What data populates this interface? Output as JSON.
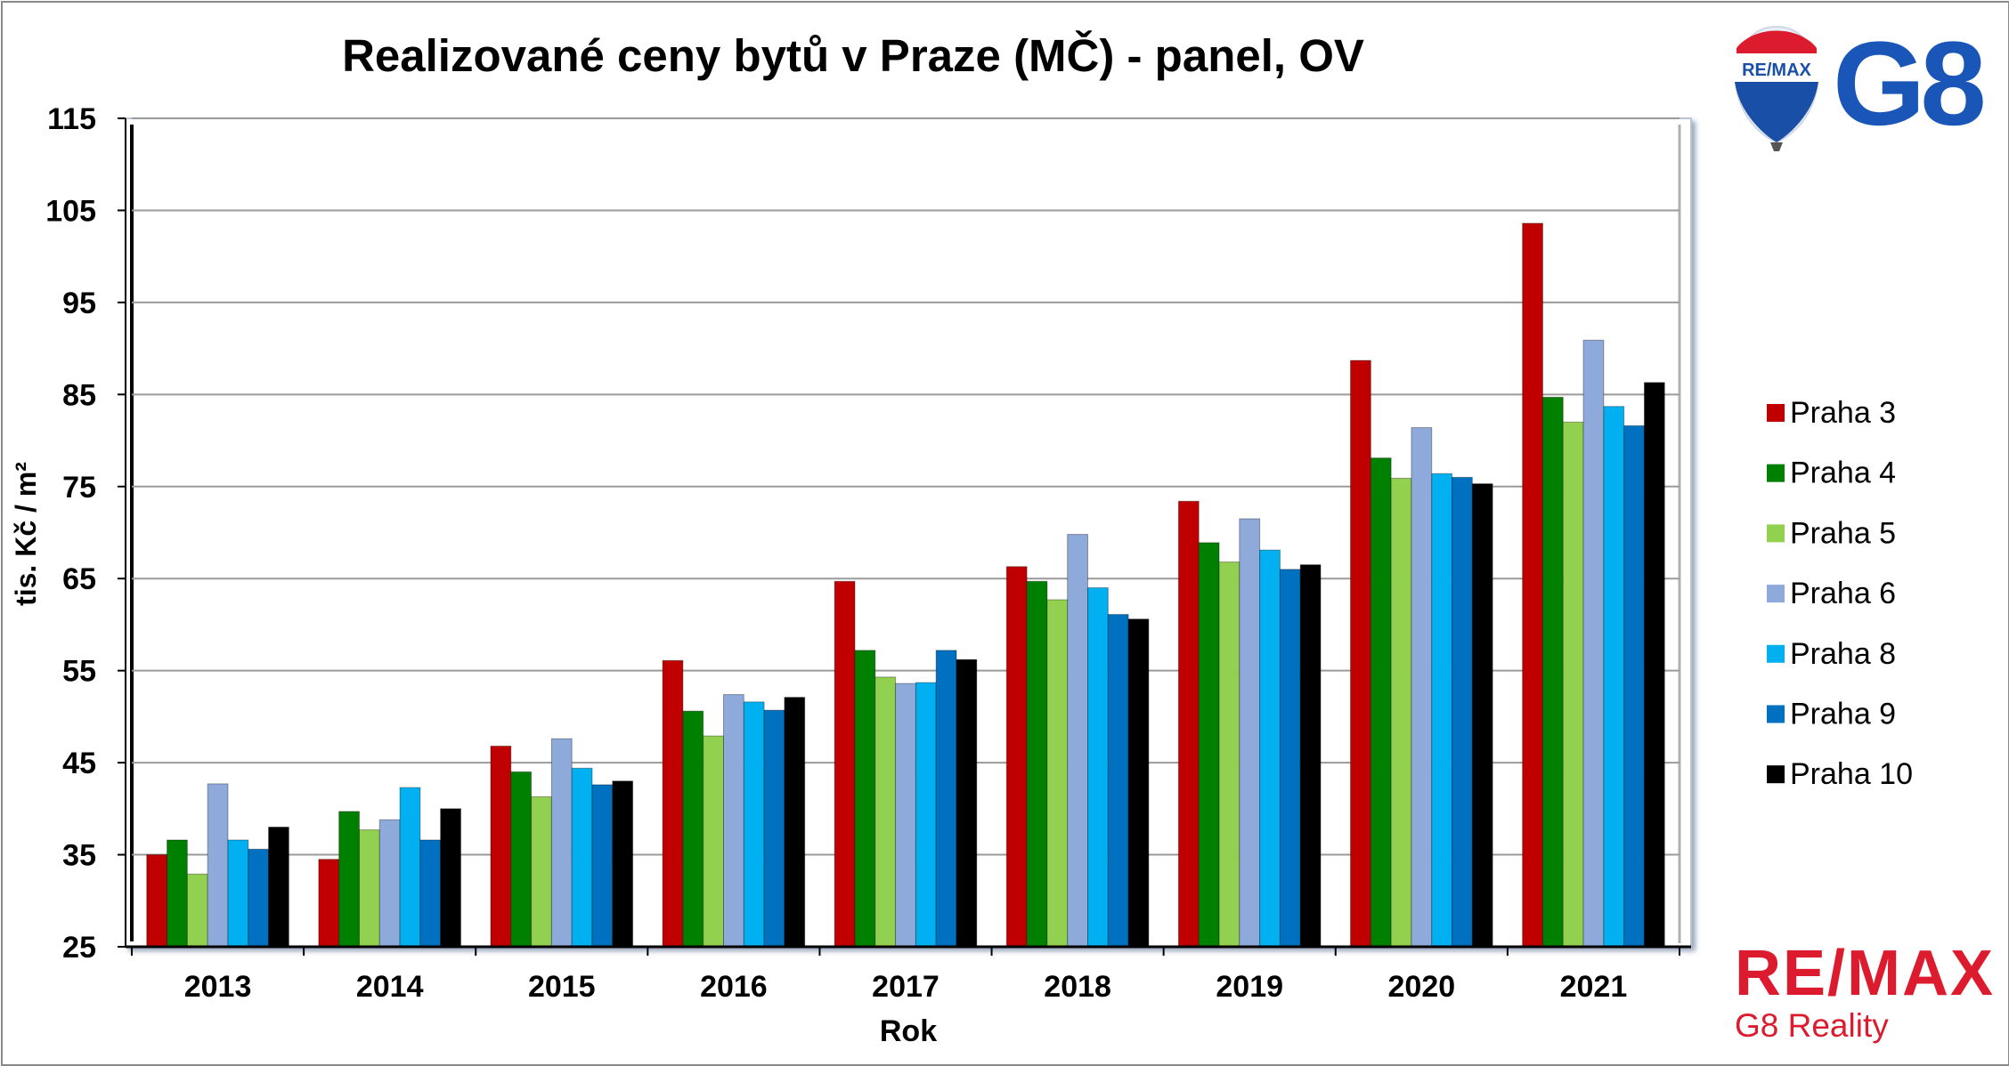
{
  "branding": {
    "balloon_text": "RE/MAX",
    "g8_logo": "G8",
    "footer_brand": "RE/MAX",
    "footer_sub": "G8 Reality"
  },
  "chart_data": {
    "type": "bar",
    "title": "Realizované ceny bytů v Praze (MČ) - panel, OV",
    "xlabel": "Rok",
    "ylabel": "tis. Kč / m²",
    "ylim": [
      25,
      115
    ],
    "yticks": [
      25,
      35,
      45,
      55,
      65,
      75,
      85,
      95,
      105,
      115
    ],
    "grid": true,
    "legend_position": "right",
    "categories": [
      "2013",
      "2014",
      "2015",
      "2016",
      "2017",
      "2018",
      "2019",
      "2020",
      "2021"
    ],
    "series": [
      {
        "name": "Praha 3",
        "color": "#c00000",
        "values": [
          35.0,
          34.5,
          46.8,
          56.1,
          64.7,
          66.3,
          73.4,
          88.7,
          103.6
        ]
      },
      {
        "name": "Praha 4",
        "color": "#008000",
        "values": [
          36.6,
          39.7,
          44.0,
          50.6,
          57.2,
          64.7,
          68.9,
          78.1,
          84.7
        ]
      },
      {
        "name": "Praha 5",
        "color": "#92d050",
        "values": [
          32.9,
          37.7,
          41.3,
          47.9,
          54.3,
          62.7,
          66.8,
          75.9,
          82.0
        ]
      },
      {
        "name": "Praha 6",
        "color": "#8eaadb",
        "values": [
          42.7,
          38.8,
          47.6,
          52.4,
          53.6,
          69.8,
          71.5,
          81.4,
          90.9
        ]
      },
      {
        "name": "Praha 8",
        "color": "#00b0f0",
        "values": [
          36.6,
          42.3,
          44.4,
          51.6,
          53.7,
          64.0,
          68.1,
          76.4,
          83.7
        ]
      },
      {
        "name": "Praha 9",
        "color": "#0070c0",
        "values": [
          35.6,
          36.6,
          42.6,
          50.7,
          57.2,
          61.1,
          66.0,
          76.0,
          81.6
        ]
      },
      {
        "name": "Praha 10",
        "color": "#000000",
        "values": [
          38.0,
          40.0,
          43.0,
          52.1,
          56.2,
          60.6,
          66.5,
          75.3,
          86.3
        ]
      }
    ]
  }
}
